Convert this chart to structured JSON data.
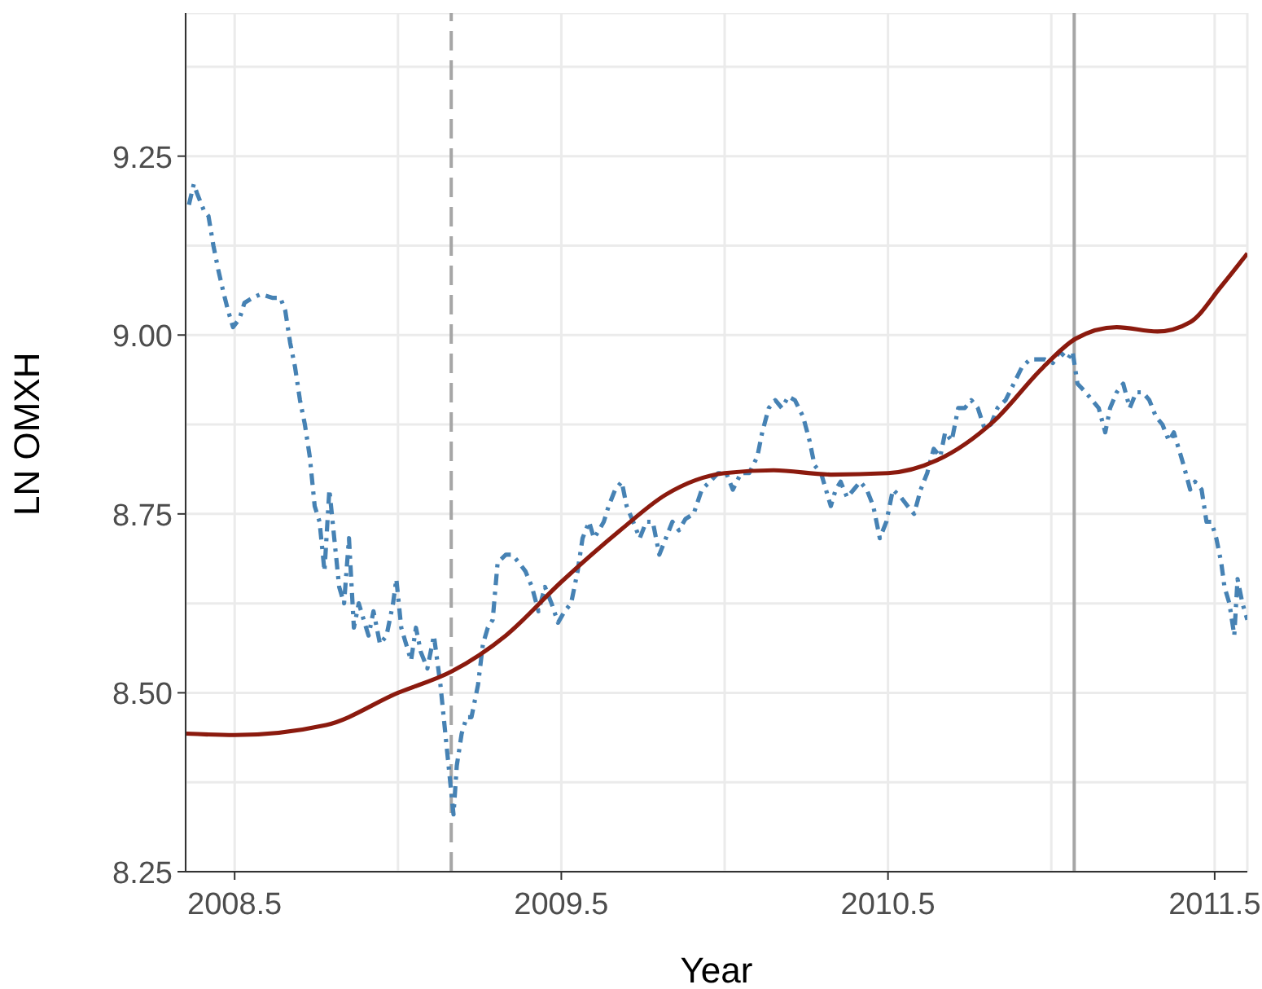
{
  "chart_data": {
    "type": "line",
    "xlabel": "Year",
    "ylabel": "LN OMXH",
    "xlim": [
      2008.35,
      2011.6
    ],
    "xticks": [
      2008.5,
      {
        "value": 2009,
        "label": null
      },
      2009.5,
      {
        "value": 2010,
        "label": null
      },
      2010.5,
      {
        "value": 2011,
        "label": null
      },
      2011.5
    ],
    "ylim": [
      8.25,
      9.45
    ],
    "yticks": [
      8.25,
      {
        "value": 8.375,
        "label": null
      },
      {
        "value": 8.5,
        "label": "8.50"
      },
      {
        "value": 8.625,
        "label": null
      },
      8.75,
      {
        "value": 8.875,
        "label": null
      },
      {
        "value": 9,
        "label": "9.00"
      },
      {
        "value": 9.125,
        "label": null
      },
      9.25,
      {
        "value": 9.375,
        "label": null
      }
    ],
    "grid": true,
    "marker": "none",
    "ref_lines": [
      {
        "axis": "x",
        "value": 2009.163,
        "color": "#a6a6a6",
        "line_style": "dashed"
      },
      {
        "axis": "x",
        "value": 2011.07,
        "color": "#a6a6a6",
        "line_style": "solid"
      }
    ],
    "series": [
      {
        "color": "#4682b4",
        "line_style": "dashed",
        "x": [
          2008.36,
          2008.375,
          2008.385,
          2008.405,
          2008.42,
          2008.435,
          2008.45,
          2008.465,
          2008.48,
          2008.495,
          2008.515,
          2008.53,
          2008.555,
          2008.58,
          2008.615,
          2008.64,
          2008.655,
          2008.67,
          2008.685,
          2008.7,
          2008.715,
          2008.73,
          2008.745,
          2008.76,
          2008.775,
          2008.79,
          2008.805,
          2008.82,
          2008.835,
          2008.85,
          2008.865,
          2008.88,
          2008.895,
          2008.91,
          2008.925,
          2008.945,
          2008.965,
          2008.985,
          2008.995,
          2009.01,
          2009.025,
          2009.04,
          2009.055,
          2009.07,
          2009.09,
          2009.11,
          2009.13,
          2009.145,
          2009.16,
          2009.17,
          2009.18,
          2009.195,
          2009.21,
          2009.225,
          2009.245,
          2009.26,
          2009.275,
          2009.29,
          2009.305,
          2009.33,
          2009.35,
          2009.37,
          2009.39,
          2009.41,
          2009.43,
          2009.45,
          2009.47,
          2009.49,
          2009.51,
          2009.53,
          2009.55,
          2009.565,
          2009.585,
          2009.6,
          2009.615,
          2009.63,
          2009.645,
          2009.665,
          2009.685,
          2009.7,
          2009.72,
          2009.74,
          2009.76,
          2009.78,
          2009.8,
          2009.82,
          2009.84,
          2009.86,
          2009.88,
          2009.905,
          2009.93,
          2009.955,
          2009.98,
          2010.005,
          2010.025,
          2010.05,
          2010.075,
          2010.1,
          2010.115,
          2010.135,
          2010.155,
          2010.175,
          2010.195,
          2010.215,
          2010.24,
          2010.26,
          2010.275,
          2010.295,
          2010.31,
          2010.325,
          2010.34,
          2010.355,
          2010.375,
          2010.395,
          2010.415,
          2010.435,
          2010.455,
          2010.475,
          2010.495,
          2010.515,
          2010.54,
          2010.56,
          2010.58,
          2010.6,
          2010.62,
          2010.64,
          2010.66,
          2010.675,
          2010.695,
          2010.715,
          2010.735,
          2010.755,
          2010.775,
          2010.795,
          2010.815,
          2010.835,
          2010.86,
          2010.885,
          2010.91,
          2010.935,
          2010.96,
          2010.98,
          2011.005,
          2011.025,
          2011.05,
          2011.065,
          2011.08,
          2011.105,
          2011.125,
          2011.145,
          2011.165,
          2011.18,
          2011.2,
          2011.22,
          2011.24,
          2011.26,
          2011.28,
          2011.3,
          2011.32,
          2011.34,
          2011.36,
          2011.375,
          2011.39,
          2011.405,
          2011.425,
          2011.44,
          2011.46,
          2011.475,
          2011.49,
          2011.505,
          2011.52,
          2011.53,
          2011.545,
          2011.56,
          2011.57,
          2011.585,
          2011.6
        ],
        "values": [
          9.182,
          9.211,
          9.198,
          9.175,
          9.166,
          9.125,
          9.091,
          9.061,
          9.034,
          9.011,
          9.023,
          9.045,
          9.052,
          9.057,
          9.052,
          9.052,
          9.034,
          8.989,
          8.955,
          8.909,
          8.875,
          8.83,
          8.761,
          8.739,
          8.67,
          8.784,
          8.716,
          8.648,
          8.625,
          8.716,
          8.591,
          8.625,
          8.602,
          8.58,
          8.614,
          8.568,
          8.58,
          8.625,
          8.659,
          8.591,
          8.568,
          8.545,
          8.591,
          8.557,
          8.534,
          8.58,
          8.511,
          8.443,
          8.375,
          8.33,
          8.398,
          8.443,
          8.466,
          8.466,
          8.511,
          8.568,
          8.591,
          8.602,
          8.682,
          8.693,
          8.693,
          8.682,
          8.67,
          8.648,
          8.614,
          8.648,
          8.625,
          8.598,
          8.614,
          8.625,
          8.67,
          8.716,
          8.739,
          8.716,
          8.727,
          8.739,
          8.761,
          8.784,
          8.795,
          8.761,
          8.739,
          8.716,
          8.739,
          8.739,
          8.693,
          8.716,
          8.739,
          8.727,
          8.743,
          8.75,
          8.784,
          8.795,
          8.807,
          8.807,
          8.784,
          8.807,
          8.807,
          8.83,
          8.864,
          8.898,
          8.909,
          8.898,
          8.914,
          8.909,
          8.886,
          8.852,
          8.818,
          8.807,
          8.784,
          8.761,
          8.784,
          8.795,
          8.773,
          8.784,
          8.795,
          8.784,
          8.761,
          8.716,
          8.739,
          8.784,
          8.773,
          8.761,
          8.75,
          8.784,
          8.807,
          8.841,
          8.83,
          8.864,
          8.852,
          8.898,
          8.898,
          8.909,
          8.898,
          8.87,
          8.875,
          8.898,
          8.909,
          8.932,
          8.955,
          8.966,
          8.966,
          8.966,
          8.961,
          8.977,
          8.966,
          8.977,
          8.932,
          8.92,
          8.909,
          8.898,
          8.864,
          8.898,
          8.92,
          8.932,
          8.898,
          8.92,
          8.92,
          8.909,
          8.886,
          8.875,
          8.852,
          8.864,
          8.841,
          8.818,
          8.784,
          8.795,
          8.784,
          8.739,
          8.739,
          8.716,
          8.682,
          8.648,
          8.625,
          8.58,
          8.659,
          8.625,
          8.602
        ]
      },
      {
        "color": "#8b1a0e",
        "line_style": "solid",
        "x": [
          2008.35,
          2008.5,
          2008.78,
          2009.0,
          2009.165,
          2009.33,
          2009.5,
          2009.68,
          2009.82,
          2010.0,
          2010.15,
          2010.325,
          2010.5,
          2010.65,
          2010.825,
          2010.975,
          2011.075,
          2011.2,
          2011.325,
          2011.425,
          2011.52,
          2011.6
        ],
        "values": [
          8.443,
          8.441,
          8.455,
          8.5,
          8.53,
          8.58,
          8.655,
          8.727,
          8.777,
          8.807,
          8.811,
          8.805,
          8.807,
          8.825,
          8.88,
          8.955,
          8.995,
          9.011,
          9.005,
          9.018,
          9.068,
          9.114
        ]
      }
    ]
  }
}
